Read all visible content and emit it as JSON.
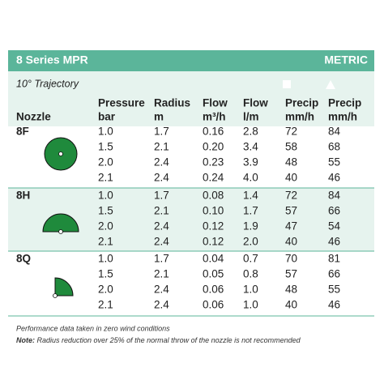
{
  "header": {
    "title": "8 Series MPR",
    "unit_system": "METRIC"
  },
  "trajectory": "10° Trajectory",
  "nozzle_label": "Nozzle",
  "columns": [
    {
      "line1": "Pressure",
      "line2": "bar"
    },
    {
      "line1": "Radius",
      "line2": "m"
    },
    {
      "line1": "Flow",
      "line2": "m³/h"
    },
    {
      "line1": "Flow",
      "line2": "l/m"
    },
    {
      "line1": "Precip",
      "line2": "mm/h"
    },
    {
      "line1": "Precip",
      "line2": "mm/h"
    }
  ],
  "groups": [
    {
      "nozzle": "8F",
      "rows": [
        [
          "1.0",
          "1.7",
          "0.16",
          "2.8",
          "72",
          "84"
        ],
        [
          "1.5",
          "2.1",
          "0.20",
          "3.4",
          "58",
          "68"
        ],
        [
          "2.0",
          "2.4",
          "0.23",
          "3.9",
          "48",
          "55"
        ],
        [
          "2.1",
          "2.4",
          "0.24",
          "4.0",
          "40",
          "46"
        ]
      ]
    },
    {
      "nozzle": "8H",
      "rows": [
        [
          "1.0",
          "1.7",
          "0.08",
          "1.4",
          "72",
          "84"
        ],
        [
          "1.5",
          "2.1",
          "0.10",
          "1.7",
          "57",
          "66"
        ],
        [
          "2.0",
          "2.4",
          "0.12",
          "1.9",
          "47",
          "54"
        ],
        [
          "2.1",
          "2.4",
          "0.12",
          "2.0",
          "40",
          "46"
        ]
      ]
    },
    {
      "nozzle": "8Q",
      "rows": [
        [
          "1.0",
          "1.7",
          "0.04",
          "0.7",
          "70",
          "81"
        ],
        [
          "1.5",
          "2.1",
          "0.05",
          "0.8",
          "57",
          "66"
        ],
        [
          "2.0",
          "2.4",
          "0.06",
          "1.0",
          "48",
          "55"
        ],
        [
          "2.1",
          "2.4",
          "0.06",
          "1.0",
          "40",
          "46"
        ]
      ]
    }
  ],
  "notes": [
    {
      "text": "Performance data taken in zero wind conditions"
    },
    {
      "label": "Note:",
      "text": "Radius reduction over 25% of the normal throw of the nozzle is not recommended"
    }
  ]
}
